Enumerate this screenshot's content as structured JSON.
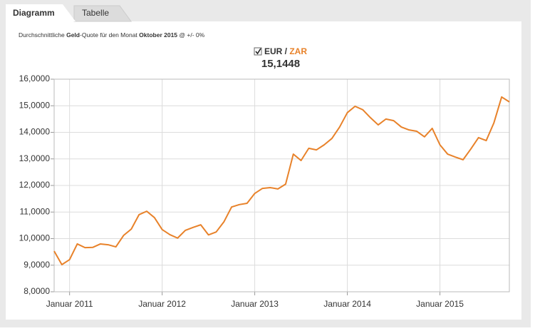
{
  "tabs": [
    "Diagramm",
    "Tabelle"
  ],
  "subtitle": [
    "Durchschnittliche ",
    "Geld",
    "-Quote für den Monat ",
    "Oktober 2015",
    " @ +/- 0%"
  ],
  "current_value": "15,1448",
  "chart_data": {
    "type": "line",
    "x": [
      "2010-11",
      "2010-12",
      "2011-01",
      "2011-02",
      "2011-03",
      "2011-04",
      "2011-05",
      "2011-06",
      "2011-07",
      "2011-08",
      "2011-09",
      "2011-10",
      "2011-11",
      "2011-12",
      "2012-01",
      "2012-02",
      "2012-03",
      "2012-04",
      "2012-05",
      "2012-06",
      "2012-07",
      "2012-08",
      "2012-09",
      "2012-10",
      "2012-11",
      "2012-12",
      "2013-01",
      "2013-02",
      "2013-03",
      "2013-04",
      "2013-05",
      "2013-06",
      "2013-07",
      "2013-08",
      "2013-09",
      "2013-10",
      "2013-11",
      "2013-12",
      "2014-01",
      "2014-02",
      "2014-03",
      "2014-04",
      "2014-05",
      "2014-06",
      "2014-07",
      "2014-08",
      "2014-09",
      "2014-10",
      "2014-11",
      "2014-12",
      "2015-01",
      "2015-02",
      "2015-03",
      "2015-04",
      "2015-05",
      "2015-06",
      "2015-07",
      "2015-08",
      "2015-09",
      "2015-10"
    ],
    "series": [
      {
        "name": "EUR / ZAR",
        "color": "#e8822a",
        "values": [
          9.53,
          9.02,
          9.21,
          9.8,
          9.66,
          9.67,
          9.8,
          9.77,
          9.69,
          10.12,
          10.36,
          10.9,
          11.03,
          10.79,
          10.34,
          10.15,
          10.02,
          10.31,
          10.42,
          10.52,
          10.14,
          10.25,
          10.63,
          11.19,
          11.28,
          11.33,
          11.7,
          11.89,
          11.92,
          11.87,
          12.05,
          13.18,
          12.94,
          13.4,
          13.34,
          13.53,
          13.77,
          14.2,
          14.74,
          14.98,
          14.85,
          14.55,
          14.28,
          14.5,
          14.44,
          14.2,
          14.09,
          14.04,
          13.83,
          14.15,
          13.53,
          13.18,
          13.07,
          12.97,
          13.37,
          13.8,
          13.69,
          14.36,
          15.33,
          15.1448
        ]
      }
    ],
    "xlim": [
      "2010-11",
      "2015-10"
    ],
    "xticks": [
      {
        "value": "2011-01",
        "label": "Januar 2011"
      },
      {
        "value": "2012-01",
        "label": "Januar 2012"
      },
      {
        "value": "2013-01",
        "label": "Januar 2013"
      },
      {
        "value": "2014-01",
        "label": "Januar 2014"
      },
      {
        "value": "2015-01",
        "label": "Januar 2015"
      }
    ],
    "ylim": [
      8,
      16
    ],
    "yticks": [
      {
        "value": 8,
        "label": "8,0000"
      },
      {
        "value": 9,
        "label": "9,0000"
      },
      {
        "value": 10,
        "label": "10,0000"
      },
      {
        "value": 11,
        "label": "11,0000"
      },
      {
        "value": 12,
        "label": "12,0000"
      },
      {
        "value": 13,
        "label": "13,0000"
      },
      {
        "value": 14,
        "label": "14,0000"
      },
      {
        "value": 15,
        "label": "15,0000"
      },
      {
        "value": 16,
        "label": "16,0000"
      }
    ],
    "grid": true
  }
}
